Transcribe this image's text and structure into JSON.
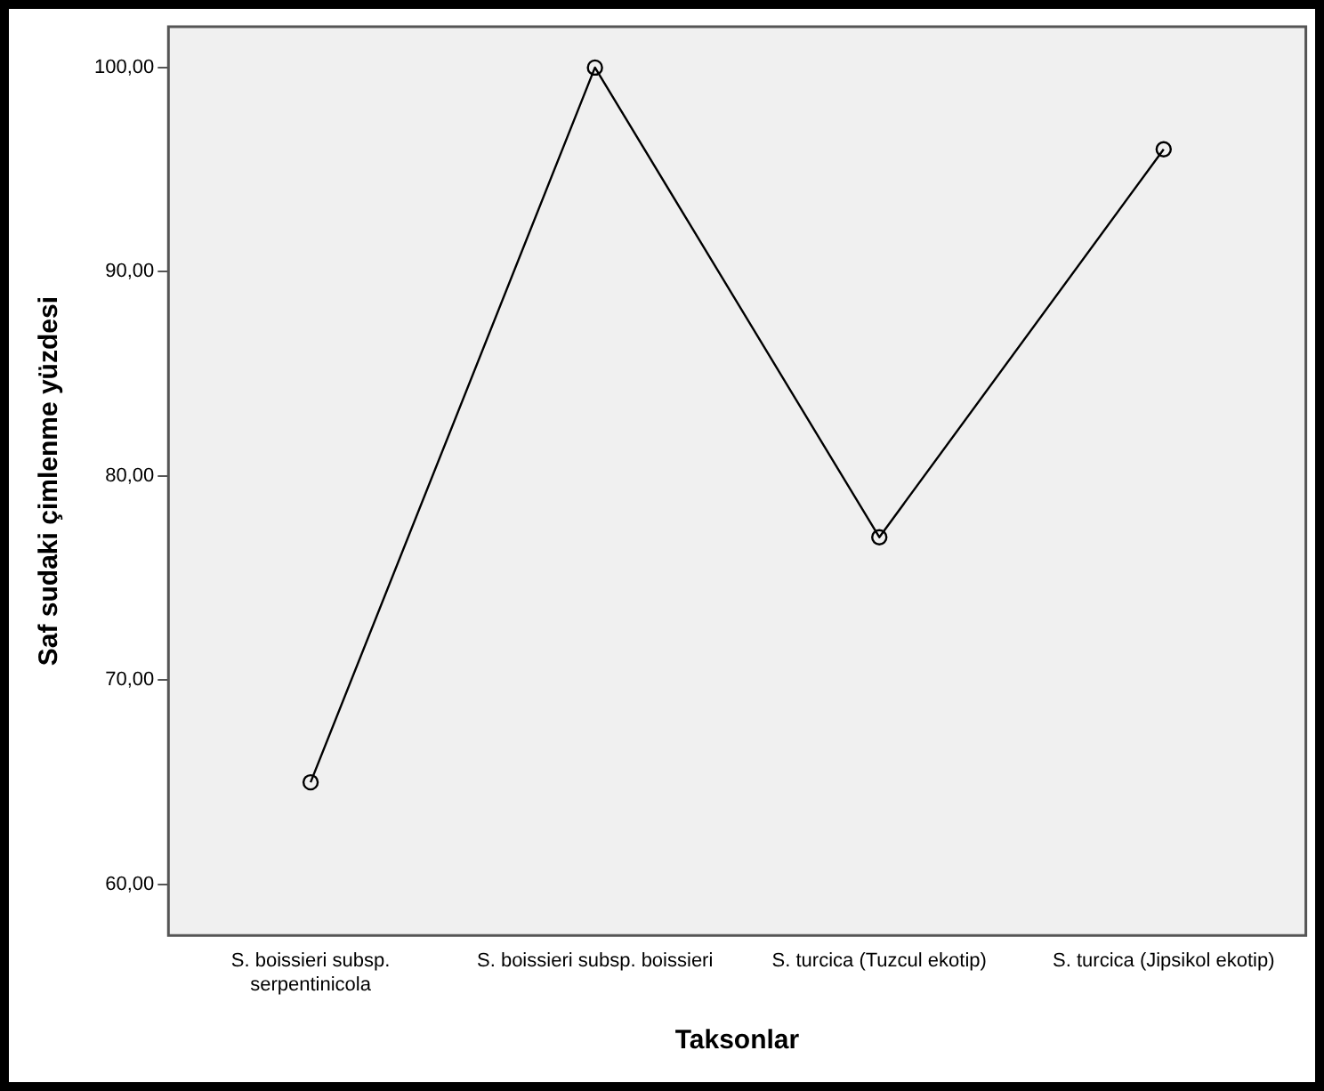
{
  "chart_data": {
    "type": "line",
    "xlabel": "Taksonlar",
    "ylabel": "Saf sudaki çimlenme yüzdesi",
    "categories": [
      "S. boissieri subsp. serpentinicola",
      "S. boissieri subsp. boissieri",
      "S. turcica (Tuzcul ekotip)",
      "S. turcica (Jipsikol ekotip)"
    ],
    "series": [
      {
        "color": "#000000",
        "values": [
          65,
          100,
          77,
          96
        ]
      }
    ],
    "ylim": [
      57.5,
      102
    ],
    "yticks": [
      {
        "value": 60,
        "label": "60,00"
      },
      {
        "value": 70,
        "label": "70,00"
      },
      {
        "value": 80,
        "label": "80,00"
      },
      {
        "value": 90,
        "label": "90,00"
      },
      {
        "value": 100,
        "label": "100,00"
      }
    ],
    "grid": false,
    "legend": false,
    "marker": "circle",
    "line_style": "solid"
  }
}
